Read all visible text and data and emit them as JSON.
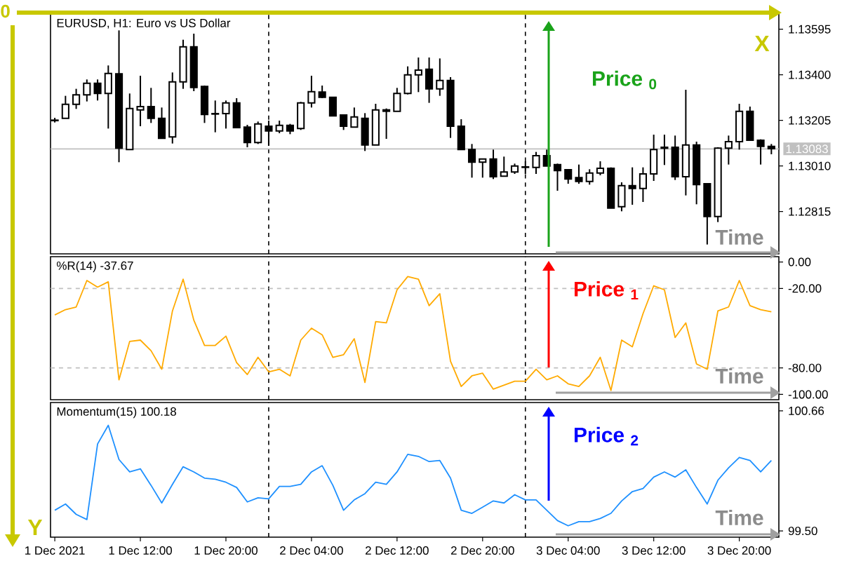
{
  "chart_data": [
    {
      "type": "candlestick",
      "title": "EURUSD, H1:  Euro vs US Dollar",
      "x": [
        "2021-12-01T04:00",
        "2021-12-01T05:00",
        "2021-12-01T06:00",
        "2021-12-01T07:00",
        "2021-12-01T08:00",
        "2021-12-01T09:00",
        "2021-12-01T10:00",
        "2021-12-01T11:00",
        "2021-12-01T12:00",
        "2021-12-01T13:00",
        "2021-12-01T14:00",
        "2021-12-01T15:00",
        "2021-12-01T16:00",
        "2021-12-01T17:00",
        "2021-12-01T18:00",
        "2021-12-01T19:00",
        "2021-12-01T20:00",
        "2021-12-01T21:00",
        "2021-12-01T22:00",
        "2021-12-01T23:00",
        "2021-12-02T00:00",
        "2021-12-02T01:00",
        "2021-12-02T02:00",
        "2021-12-02T03:00",
        "2021-12-02T04:00",
        "2021-12-02T05:00",
        "2021-12-02T06:00",
        "2021-12-02T07:00",
        "2021-12-02T08:00",
        "2021-12-02T09:00",
        "2021-12-02T10:00",
        "2021-12-02T11:00",
        "2021-12-02T12:00",
        "2021-12-02T13:00",
        "2021-12-02T14:00",
        "2021-12-02T15:00",
        "2021-12-02T16:00",
        "2021-12-02T17:00",
        "2021-12-02T18:00",
        "2021-12-02T19:00",
        "2021-12-02T20:00",
        "2021-12-02T21:00",
        "2021-12-02T22:00",
        "2021-12-02T23:00",
        "2021-12-03T00:00",
        "2021-12-03T01:00",
        "2021-12-03T02:00",
        "2021-12-03T03:00",
        "2021-12-03T04:00",
        "2021-12-03T05:00",
        "2021-12-03T06:00",
        "2021-12-03T07:00",
        "2021-12-03T08:00",
        "2021-12-03T09:00",
        "2021-12-03T10:00",
        "2021-12-03T11:00",
        "2021-12-03T12:00",
        "2021-12-03T13:00",
        "2021-12-03T14:00",
        "2021-12-03T15:00",
        "2021-12-03T16:00",
        "2021-12-03T17:00",
        "2021-12-03T18:00",
        "2021-12-03T19:00",
        "2021-12-03T20:00",
        "2021-12-03T21:00",
        "2021-12-03T22:00",
        "2021-12-03T23:00"
      ],
      "ohlc": [
        [
          1.13204,
          1.13216,
          1.13196,
          1.13206
        ],
        [
          1.13214,
          1.1331,
          1.13214,
          1.13274
        ],
        [
          1.13274,
          1.1334,
          1.13254,
          1.13314
        ],
        [
          1.13314,
          1.1338,
          1.13286,
          1.13364
        ],
        [
          1.13364,
          1.1338,
          1.1329,
          1.1332
        ],
        [
          1.1332,
          1.1344,
          1.1317,
          1.13406
        ],
        [
          1.13404,
          1.1359,
          1.13026,
          1.13086
        ],
        [
          1.1308,
          1.1332,
          1.1308,
          1.13256
        ],
        [
          1.1325,
          1.13396,
          1.1318,
          1.13264
        ],
        [
          1.13264,
          1.13344,
          1.13194,
          1.13214
        ],
        [
          1.13214,
          1.1326,
          1.13128,
          1.13128
        ],
        [
          1.13134,
          1.1341,
          1.13106,
          1.1337
        ],
        [
          1.1337,
          1.1355,
          1.1334,
          1.1352
        ],
        [
          1.1352,
          1.13576,
          1.1333,
          1.13346
        ],
        [
          1.1335,
          1.13354,
          1.13194,
          1.1323
        ],
        [
          1.13232,
          1.1329,
          1.13154,
          1.13234
        ],
        [
          1.13234,
          1.1329,
          1.1317,
          1.1328
        ],
        [
          1.1328,
          1.133,
          1.13174,
          1.13174
        ],
        [
          1.13176,
          1.13186,
          1.1309,
          1.1311
        ],
        [
          1.1311,
          1.132,
          1.13104,
          1.1319
        ],
        [
          1.1318,
          1.13204,
          1.13096,
          1.1316
        ],
        [
          1.1316,
          1.13204,
          1.1315,
          1.13184
        ],
        [
          1.13184,
          1.1319,
          1.13146,
          1.1316
        ],
        [
          1.1317,
          1.13284,
          1.13164,
          1.1328
        ],
        [
          1.1328,
          1.13396,
          1.1326,
          1.13328
        ],
        [
          1.13326,
          1.13354,
          1.133,
          1.13304
        ],
        [
          1.13304,
          1.13304,
          1.13224,
          1.13224
        ],
        [
          1.13228,
          1.13228,
          1.13164,
          1.1318
        ],
        [
          1.13176,
          1.1326,
          1.13176,
          1.1322
        ],
        [
          1.13214,
          1.13236,
          1.13074,
          1.131
        ],
        [
          1.131,
          1.13276,
          1.131,
          1.1325
        ],
        [
          1.1325,
          1.13256,
          1.13126,
          1.13244
        ],
        [
          1.13244,
          1.13344,
          1.13244,
          1.1332
        ],
        [
          1.1332,
          1.13436,
          1.13316,
          1.134
        ],
        [
          1.134,
          1.13474,
          1.13326,
          1.1342
        ],
        [
          1.13424,
          1.13474,
          1.1328,
          1.1334
        ],
        [
          1.1334,
          1.1347,
          1.1331,
          1.13376
        ],
        [
          1.13376,
          1.1339,
          1.1313,
          1.1318
        ],
        [
          1.1318,
          1.1321,
          1.1308,
          1.1308
        ],
        [
          1.1308,
          1.13104,
          1.1296,
          1.13026
        ],
        [
          1.13026,
          1.1304,
          1.1296,
          1.1304
        ],
        [
          1.1304,
          1.1308,
          1.12954,
          1.12964
        ],
        [
          1.12966,
          1.1305,
          1.12966,
          1.12984
        ],
        [
          1.12984,
          1.1302,
          1.12976,
          1.1301
        ],
        [
          1.13004,
          1.1303,
          1.12976,
          1.13006
        ],
        [
          1.13004,
          1.1307,
          1.12976,
          1.13054
        ],
        [
          1.13054,
          1.1308,
          1.1301,
          1.1301
        ],
        [
          1.13016,
          1.1302,
          1.12904,
          1.1299
        ],
        [
          1.12994,
          1.12994,
          1.12934,
          1.12954
        ],
        [
          1.1296,
          1.13016,
          1.12934,
          1.12944
        ],
        [
          1.12944,
          1.12996,
          1.1293,
          1.1298
        ],
        [
          1.1298,
          1.1303,
          1.1297,
          1.13
        ],
        [
          1.13,
          1.13004,
          1.1283,
          1.1283
        ],
        [
          1.12836,
          1.1294,
          1.12816,
          1.12926
        ],
        [
          1.12926,
          1.13004,
          1.12844,
          1.12914
        ],
        [
          1.12914,
          1.13004,
          1.12856,
          1.12976
        ],
        [
          1.12976,
          1.13144,
          1.12946,
          1.1308
        ],
        [
          1.1309,
          1.13144,
          1.13014,
          1.13086
        ],
        [
          1.1309,
          1.1314,
          1.1295,
          1.12964
        ],
        [
          1.12964,
          1.13336,
          1.12884,
          1.131
        ],
        [
          1.131,
          1.13114,
          1.12846,
          1.1293
        ],
        [
          1.12934,
          1.12934,
          1.12674,
          1.12794
        ],
        [
          1.12794,
          1.1309,
          1.1277,
          1.13086
        ],
        [
          1.13086,
          1.1314,
          1.13016,
          1.13114
        ],
        [
          1.13114,
          1.13276,
          1.1308,
          1.13244
        ],
        [
          1.13244,
          1.13264,
          1.1312,
          1.1312
        ],
        [
          1.1312,
          1.13124,
          1.13016,
          1.13094
        ],
        [
          1.13094,
          1.13104,
          1.1306,
          1.13084
        ]
      ],
      "xlim": [
        "2021-12-01T03:36",
        "2021-12-03T23:42"
      ],
      "ylim": [
        1.12634,
        1.1366
      ],
      "yticks": [
        {
          "value": 1.13595,
          "label": "1.13595"
        },
        {
          "value": 1.134,
          "label": "1.13400"
        },
        {
          "value": 1.13205,
          "label": "1.13205"
        },
        {
          "value": 1.1301,
          "label": "1.13010"
        },
        {
          "value": 1.12815,
          "label": "1.12815"
        }
      ],
      "tick_labels": "y",
      "ref_lines": [
        {
          "axis": "x",
          "value": "2021-12-02T00:00",
          "color": "#000000",
          "line_style": "dashed"
        },
        {
          "axis": "x",
          "value": "2021-12-03T00:00",
          "color": "#000000",
          "line_style": "dashed"
        },
        {
          "axis": "y",
          "value": 1.13083,
          "label": "1.13083",
          "color": "#c0c0c0",
          "line_style": "solid"
        }
      ],
      "annotations": [
        "0",
        "X",
        "Price $_{0}$",
        "Time"
      ]
    },
    {
      "type": "line",
      "title": "%R(14) -37.67",
      "x": [
        "2021-12-01T04:00",
        "2021-12-01T05:00",
        "2021-12-01T06:00",
        "2021-12-01T07:00",
        "2021-12-01T08:00",
        "2021-12-01T09:00",
        "2021-12-01T10:00",
        "2021-12-01T11:00",
        "2021-12-01T12:00",
        "2021-12-01T13:00",
        "2021-12-01T14:00",
        "2021-12-01T15:00",
        "2021-12-01T16:00",
        "2021-12-01T17:00",
        "2021-12-01T18:00",
        "2021-12-01T19:00",
        "2021-12-01T20:00",
        "2021-12-01T21:00",
        "2021-12-01T22:00",
        "2021-12-01T23:00",
        "2021-12-02T00:00",
        "2021-12-02T01:00",
        "2021-12-02T02:00",
        "2021-12-02T03:00",
        "2021-12-02T04:00",
        "2021-12-02T05:00",
        "2021-12-02T06:00",
        "2021-12-02T07:00",
        "2021-12-02T08:00",
        "2021-12-02T09:00",
        "2021-12-02T10:00",
        "2021-12-02T11:00",
        "2021-12-02T12:00",
        "2021-12-02T13:00",
        "2021-12-02T14:00",
        "2021-12-02T15:00",
        "2021-12-02T16:00",
        "2021-12-02T17:00",
        "2021-12-02T18:00",
        "2021-12-02T19:00",
        "2021-12-02T20:00",
        "2021-12-02T21:00",
        "2021-12-02T22:00",
        "2021-12-02T23:00",
        "2021-12-03T00:00",
        "2021-12-03T01:00",
        "2021-12-03T02:00",
        "2021-12-03T03:00",
        "2021-12-03T04:00",
        "2021-12-03T05:00",
        "2021-12-03T06:00",
        "2021-12-03T07:00",
        "2021-12-03T08:00",
        "2021-12-03T09:00",
        "2021-12-03T10:00",
        "2021-12-03T11:00",
        "2021-12-03T12:00",
        "2021-12-03T13:00",
        "2021-12-03T14:00",
        "2021-12-03T15:00",
        "2021-12-03T16:00",
        "2021-12-03T17:00",
        "2021-12-03T18:00",
        "2021-12-03T19:00",
        "2021-12-03T20:00",
        "2021-12-03T21:00",
        "2021-12-03T22:00",
        "2021-12-03T23:00"
      ],
      "values": [
        -40,
        -36,
        -34,
        -14,
        -19,
        -15,
        -89,
        -60,
        -59,
        -67,
        -81,
        -37,
        -13,
        -44,
        -63,
        -63,
        -56,
        -76,
        -85,
        -72,
        -83,
        -81,
        -86,
        -59,
        -50,
        -55,
        -72,
        -70,
        -58,
        -91,
        -45,
        -46,
        -21,
        -11,
        -13,
        -33,
        -24,
        -75,
        -94,
        -86,
        -84,
        -96,
        -93,
        -90,
        -90,
        -81,
        -89,
        -86,
        -92,
        -94,
        -86,
        -72,
        -97,
        -59,
        -64,
        -39,
        -18,
        -21,
        -57,
        -46,
        -77,
        -81,
        -37,
        -34,
        -14,
        -33,
        -36,
        -37.67
      ],
      "color": "#ffaa00",
      "xlim": [
        "2021-12-01T03:36",
        "2021-12-03T23:42"
      ],
      "ylim": [
        -104,
        4
      ],
      "yticks": [
        {
          "value": 0,
          "label": "0.00"
        },
        {
          "value": -20,
          "label": "-20.00"
        },
        {
          "value": -80,
          "label": "-80.00"
        },
        {
          "value": -100,
          "label": "-100.00"
        }
      ],
      "tick_labels": "y",
      "ref_lines": [
        {
          "axis": "x",
          "value": "2021-12-02T00:00",
          "color": "#000000",
          "line_style": "dashed"
        },
        {
          "axis": "x",
          "value": "2021-12-03T00:00",
          "color": "#000000",
          "line_style": "dashed"
        },
        {
          "axis": "y",
          "value": -20,
          "color": "#c0c0c0",
          "line_style": "dashed"
        },
        {
          "axis": "y",
          "value": -80,
          "color": "#c0c0c0",
          "line_style": "dashed"
        }
      ],
      "annotations": [
        "Price $_{1}$",
        "Time"
      ]
    },
    {
      "type": "line",
      "title": "Momentum(15) 100.18",
      "x": [
        "2021-12-01T04:00",
        "2021-12-01T05:00",
        "2021-12-01T06:00",
        "2021-12-01T07:00",
        "2021-12-01T08:00",
        "2021-12-01T09:00",
        "2021-12-01T10:00",
        "2021-12-01T11:00",
        "2021-12-01T12:00",
        "2021-12-01T13:00",
        "2021-12-01T14:00",
        "2021-12-01T15:00",
        "2021-12-01T16:00",
        "2021-12-01T17:00",
        "2021-12-01T18:00",
        "2021-12-01T19:00",
        "2021-12-01T20:00",
        "2021-12-01T21:00",
        "2021-12-01T22:00",
        "2021-12-01T23:00",
        "2021-12-02T00:00",
        "2021-12-02T01:00",
        "2021-12-02T02:00",
        "2021-12-02T03:00",
        "2021-12-02T04:00",
        "2021-12-02T05:00",
        "2021-12-02T06:00",
        "2021-12-02T07:00",
        "2021-12-02T08:00",
        "2021-12-02T09:00",
        "2021-12-02T10:00",
        "2021-12-02T11:00",
        "2021-12-02T12:00",
        "2021-12-02T13:00",
        "2021-12-02T14:00",
        "2021-12-02T15:00",
        "2021-12-02T16:00",
        "2021-12-02T17:00",
        "2021-12-02T18:00",
        "2021-12-02T19:00",
        "2021-12-02T20:00",
        "2021-12-02T21:00",
        "2021-12-02T22:00",
        "2021-12-02T23:00",
        "2021-12-03T00:00",
        "2021-12-03T01:00",
        "2021-12-03T02:00",
        "2021-12-03T03:00",
        "2021-12-03T04:00",
        "2021-12-03T05:00",
        "2021-12-03T06:00",
        "2021-12-03T07:00",
        "2021-12-03T08:00",
        "2021-12-03T09:00",
        "2021-12-03T10:00",
        "2021-12-03T11:00",
        "2021-12-03T12:00",
        "2021-12-03T13:00",
        "2021-12-03T14:00",
        "2021-12-03T15:00",
        "2021-12-03T16:00",
        "2021-12-03T17:00",
        "2021-12-03T18:00",
        "2021-12-03T19:00",
        "2021-12-03T20:00",
        "2021-12-03T21:00",
        "2021-12-03T22:00",
        "2021-12-03T23:00"
      ],
      "values": [
        99.7,
        99.76,
        99.66,
        99.61,
        100.34,
        100.52,
        100.19,
        100.07,
        100.1,
        99.94,
        99.77,
        99.95,
        100.12,
        100.07,
        100.01,
        100.0,
        99.97,
        99.92,
        99.78,
        99.82,
        99.81,
        99.93,
        99.93,
        99.95,
        100.07,
        100.13,
        99.94,
        99.7,
        99.8,
        99.86,
        99.97,
        99.95,
        100.07,
        100.24,
        100.22,
        100.17,
        100.18,
        100.01,
        99.7,
        99.67,
        99.73,
        99.79,
        99.77,
        99.85,
        99.8,
        99.8,
        99.7,
        99.6,
        99.55,
        99.59,
        99.59,
        99.62,
        99.67,
        99.79,
        99.88,
        99.91,
        100.02,
        100.07,
        100.02,
        100.09,
        99.92,
        99.76,
        99.99,
        100.11,
        100.21,
        100.18,
        100.07,
        100.18
      ],
      "color": "#1e90ff",
      "xlim": [
        "2021-12-01T03:36",
        "2021-12-03T23:42"
      ],
      "ylim": [
        99.44,
        100.74
      ],
      "yticks": [
        {
          "value": 100.66,
          "label": "100.66"
        },
        {
          "value": 99.5,
          "label": "99.50"
        }
      ],
      "xticks": [
        {
          "value": "2021-12-01T04:00",
          "label": "1 Dec 2021"
        },
        {
          "value": "2021-12-01T12:00",
          "label": "1 Dec 12:00"
        },
        {
          "value": "2021-12-01T20:00",
          "label": "1 Dec 20:00"
        },
        {
          "value": "2021-12-02T04:00",
          "label": "2 Dec 04:00"
        },
        {
          "value": "2021-12-02T12:00",
          "label": "2 Dec 12:00"
        },
        {
          "value": "2021-12-02T20:00",
          "label": "2 Dec 20:00"
        },
        {
          "value": "2021-12-03T04:00",
          "label": "3 Dec 04:00"
        },
        {
          "value": "2021-12-03T12:00",
          "label": "3 Dec 12:00"
        },
        {
          "value": "2021-12-03T20:00",
          "label": "3 Dec 20:00"
        }
      ],
      "ref_lines": [
        {
          "axis": "x",
          "value": "2021-12-02T00:00",
          "color": "#000000",
          "line_style": "dashed"
        },
        {
          "axis": "x",
          "value": "2021-12-03T00:00",
          "color": "#000000",
          "line_style": "dashed"
        }
      ],
      "annotations": [
        "Price $_{2}$",
        "Time",
        "Y"
      ]
    }
  ]
}
